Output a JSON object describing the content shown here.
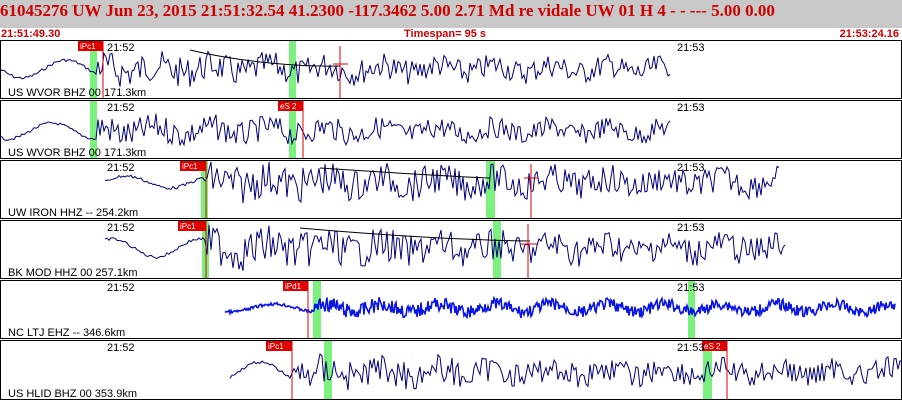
{
  "header": {
    "title": "61045276 UW Jun 23, 2015 21:51:32.54   41.2300 -117.3462  5.00 2.71 Md re    vidale   UW 01 H    4  -  - ---  5.00 0.00",
    "start_time": "21:51:49.30",
    "timespan": "Timespan=  95 s",
    "end_time": "21:53:24.16"
  },
  "colors": {
    "trace": "#00007a",
    "trace_highlight": "#0a14e6",
    "pick_flag": "#e00000",
    "pick_line": "#e00000",
    "window": "#7cf07c",
    "title": "#d00000",
    "header_bg": "#c8c8c8"
  },
  "traces": [
    {
      "station": "US WVOR BHZ 00 171.3km",
      "minute_a": "21:52",
      "minute_b": "21:53",
      "phase": "iPc1",
      "trace_color": "trace"
    },
    {
      "station": "US WVOR BHZ 00 171.3km",
      "minute_a": "21:52",
      "minute_b": "21:53",
      "phase": "eS 2",
      "trace_color": "trace"
    },
    {
      "station": "UW IRON HHZ -- 254.2km",
      "minute_a": "21:52",
      "minute_b": "21:53",
      "phase": "iPc1",
      "trace_color": "trace"
    },
    {
      "station": "BK MOD HHZ 00 257.1km",
      "minute_a": "21:52",
      "minute_b": "21:53",
      "phase": "iPc1",
      "trace_color": "trace"
    },
    {
      "station": "NC LTJ EHZ -- 346.6km",
      "minute_a": "21:52",
      "minute_b": "21:53",
      "phase": "iPd1",
      "trace_color": "trace_highlight"
    },
    {
      "station": "US HLID BHZ 00 353.9km",
      "minute_a": "21:52",
      "minute_b": "21:53",
      "phase": "iPc1",
      "phase2": "eS 2",
      "trace_color": "trace"
    }
  ]
}
